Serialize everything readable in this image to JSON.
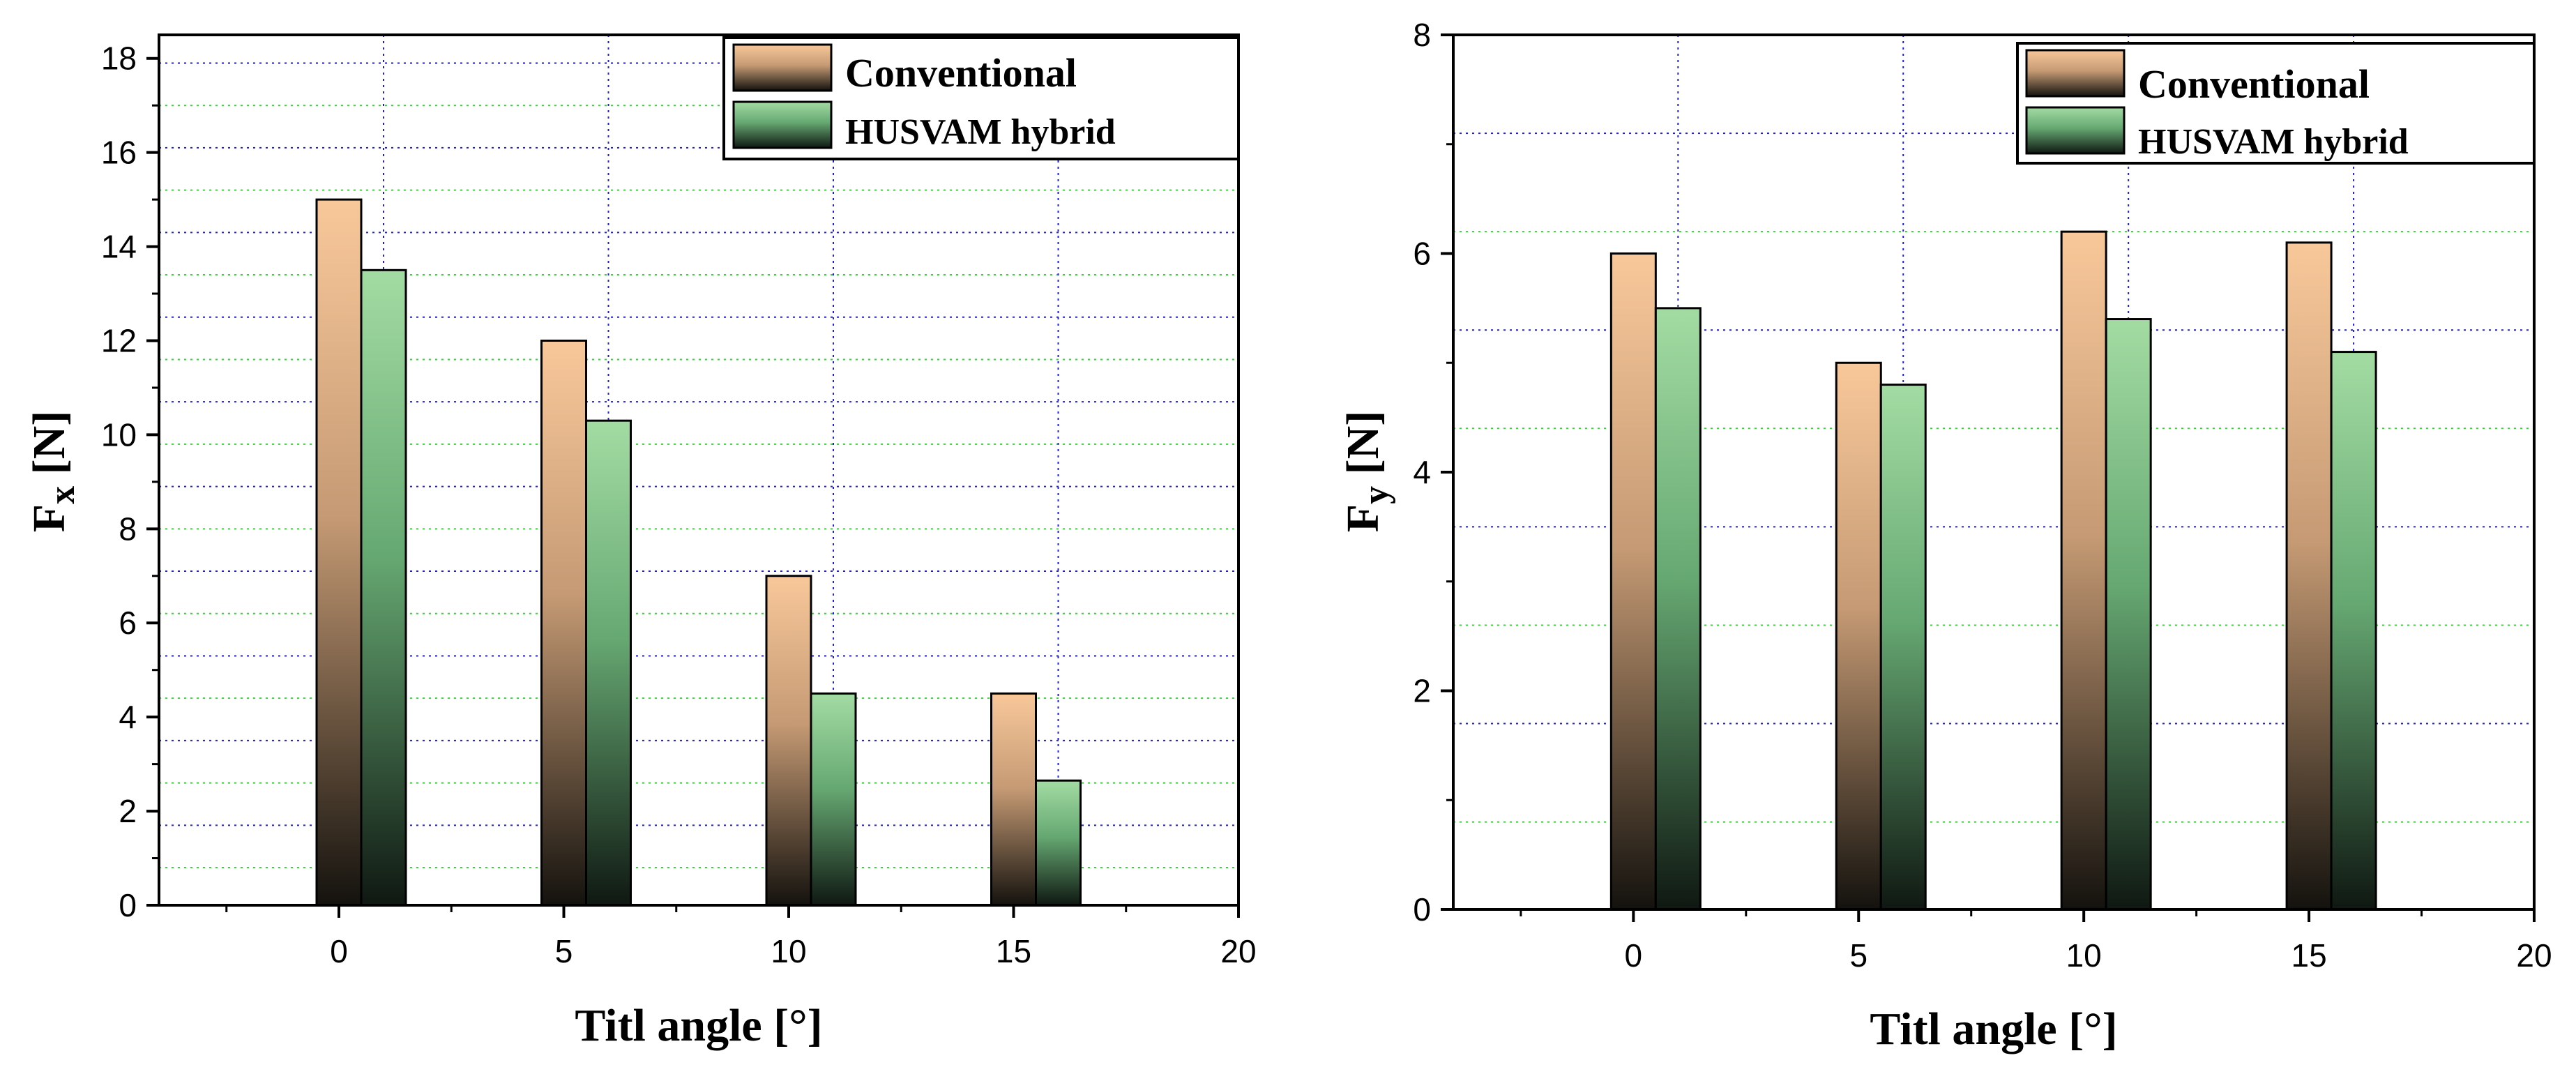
{
  "chart_data": [
    {
      "type": "bar",
      "title": "",
      "xlabel": "Titl angle [°]",
      "ylabel_main": "F",
      "ylabel_sub": "x",
      "ylabel_unit": "[N]",
      "x_ticks": [
        "0",
        "5",
        "10",
        "15",
        "20"
      ],
      "y_ticks": [
        "0",
        "2",
        "4",
        "6",
        "8",
        "10",
        "12",
        "14",
        "16",
        "18"
      ],
      "xlim": [
        -4,
        20
      ],
      "ylim": [
        0,
        18.5
      ],
      "categories": [
        0,
        5,
        10,
        15
      ],
      "series": [
        {
          "name": "Conventional",
          "values": [
            15.0,
            12.0,
            7.0,
            4.5
          ]
        },
        {
          "name": "HUSVAM hybrid",
          "values": [
            13.5,
            10.3,
            4.5,
            2.65
          ]
        }
      ],
      "legend_position": "top-right",
      "grid": true,
      "colors": {
        "conventional_top": "#f8c89a",
        "hybrid_top": "#a3dca3",
        "bar_bottom": "#14120e",
        "grid_blue": "#2020d0",
        "grid_green": "#33d633"
      }
    },
    {
      "type": "bar",
      "title": "",
      "xlabel": "Titl angle [°]",
      "ylabel_main": "F",
      "ylabel_sub": "y",
      "ylabel_unit": "[N]",
      "x_ticks": [
        "0",
        "5",
        "10",
        "15",
        "20"
      ],
      "y_ticks": [
        "0",
        "2",
        "4",
        "6",
        "8"
      ],
      "xlim": [
        -4,
        20
      ],
      "ylim": [
        0,
        8
      ],
      "categories": [
        0,
        5,
        10,
        15
      ],
      "series": [
        {
          "name": "Conventional",
          "values": [
            6.0,
            5.0,
            6.2,
            6.1
          ]
        },
        {
          "name": "HUSVAM hybrid",
          "values": [
            5.5,
            4.8,
            5.4,
            5.1
          ]
        }
      ],
      "legend_position": "top-right",
      "grid": true,
      "colors": {
        "conventional_top": "#f8c89a",
        "hybrid_top": "#a3dca3",
        "bar_bottom": "#14120e",
        "grid_blue": "#2020d0",
        "grid_green": "#33d633"
      }
    }
  ]
}
